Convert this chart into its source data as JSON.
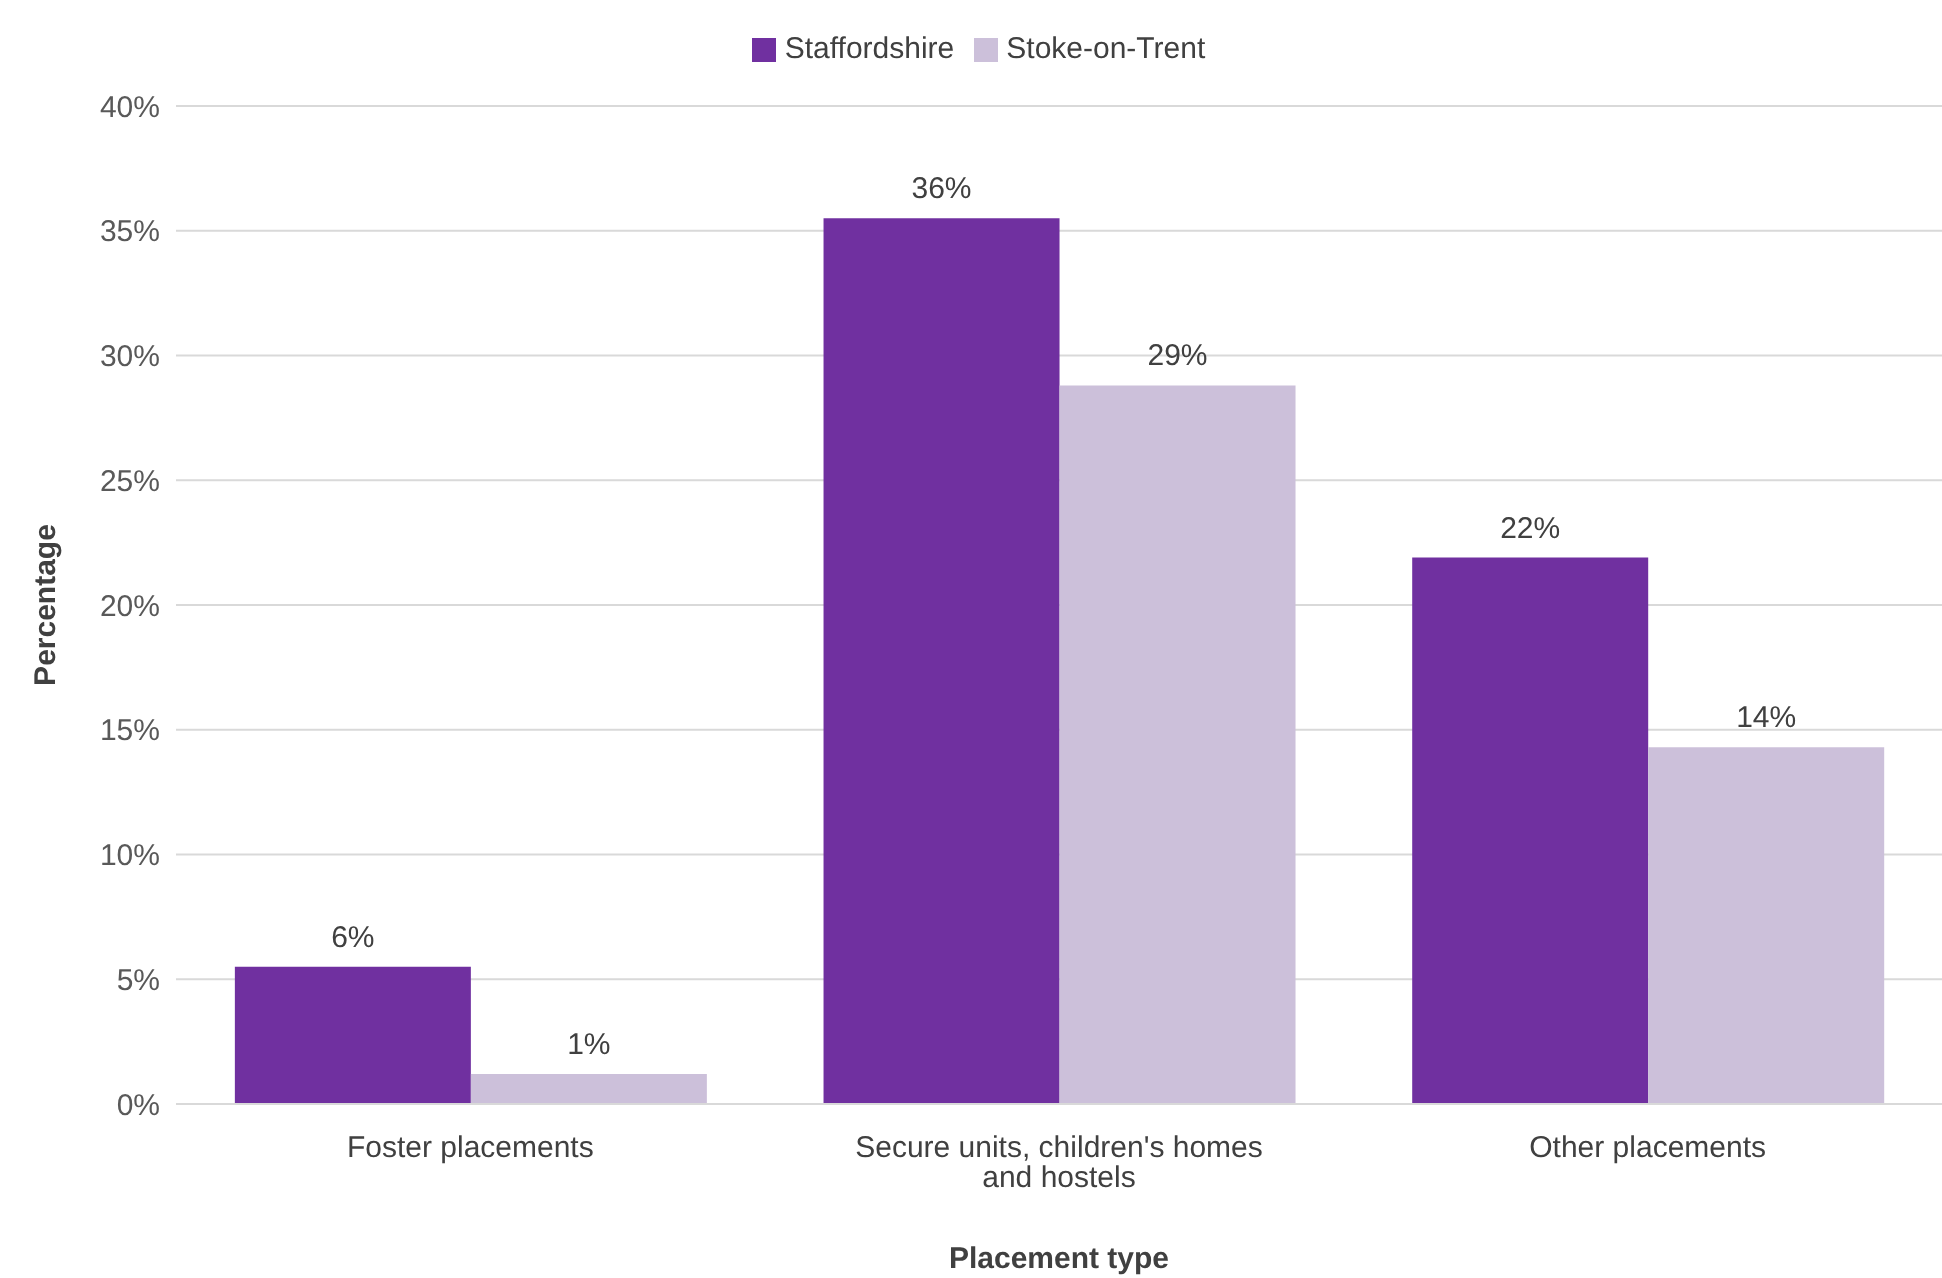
{
  "chart_data": {
    "type": "bar",
    "xlabel": "Placement type",
    "ylabel": "Percentage",
    "categories": [
      "Foster placements",
      "Secure units, children's homes and hostels",
      "Other placements"
    ],
    "series": [
      {
        "name": "Staffordshire",
        "color": "#7030a0",
        "values": [
          5.5,
          35.5,
          21.9
        ],
        "value_labels": [
          "6%",
          "36%",
          "22%"
        ]
      },
      {
        "name": "Stoke-on-Trent",
        "color": "#ccc0da",
        "values": [
          1.2,
          28.8,
          14.3
        ],
        "value_labels": [
          "1%",
          "29%",
          "14%"
        ]
      }
    ],
    "ylim": [
      0,
      40
    ],
    "yticks": [
      {
        "value": 0,
        "label": "0%"
      },
      {
        "value": 5,
        "label": "5%"
      },
      {
        "value": 10,
        "label": "10%"
      },
      {
        "value": 15,
        "label": "15%"
      },
      {
        "value": 20,
        "label": "20%"
      },
      {
        "value": 25,
        "label": "25%"
      },
      {
        "value": 30,
        "label": "30%"
      },
      {
        "value": 35,
        "label": "35%"
      },
      {
        "value": 40,
        "label": "40%"
      }
    ],
    "grid": "y",
    "legend": "top"
  }
}
